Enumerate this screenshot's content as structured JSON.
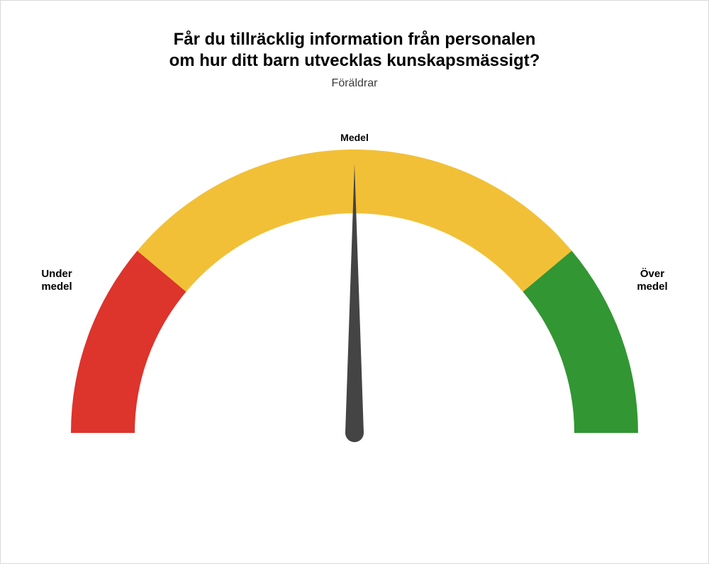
{
  "title_line1": "Får du tillräcklig information från personalen",
  "title_line2": "om hur ditt barn utvecklas kunskapsmässigt?",
  "subtitle": "Föräldrar",
  "gauge": {
    "type": "gauge",
    "outer_radius": 400,
    "inner_radius": 310,
    "segments": [
      {
        "start_deg": 180,
        "end_deg": 140,
        "color": "#dd342c"
      },
      {
        "start_deg": 140,
        "end_deg": 40,
        "color": "#f2c037"
      },
      {
        "start_deg": 40,
        "end_deg": 0,
        "color": "#329633"
      }
    ],
    "needle_deg": 90,
    "needle_color": "#444444",
    "background_color": "#ffffff",
    "border_color": "#d9d9d9",
    "labels": {
      "left_line1": "Under",
      "left_line2": "medel",
      "middle": "Medel",
      "right_line1": "Över",
      "right_line2": "medel"
    },
    "label_fontsize": 15,
    "title_fontsize": 24
  }
}
